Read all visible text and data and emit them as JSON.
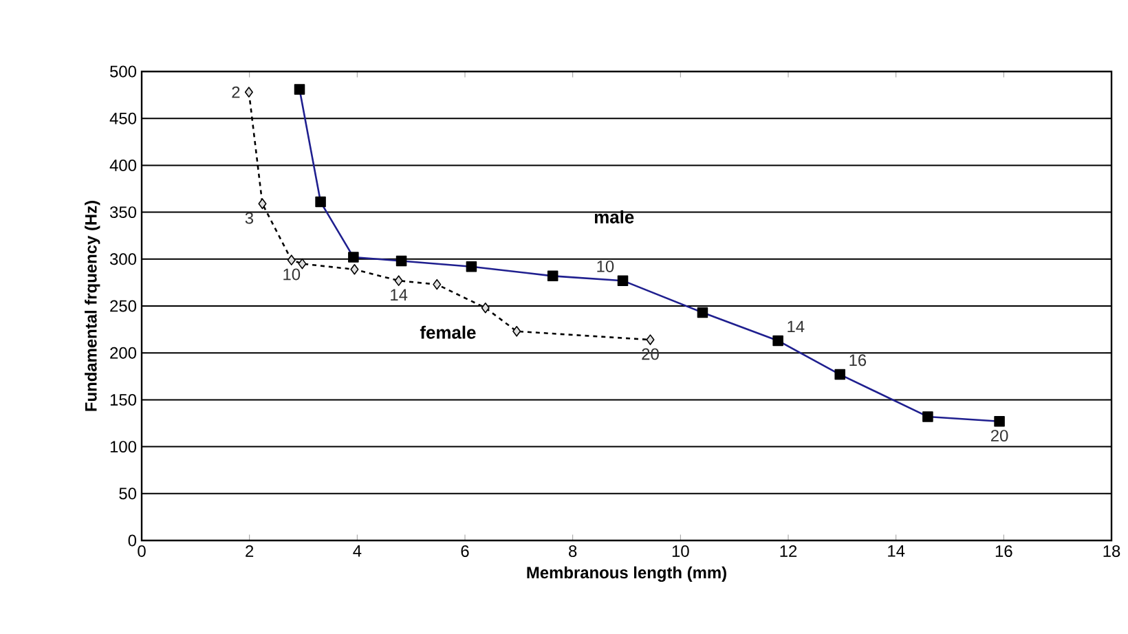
{
  "chart_data": {
    "type": "line",
    "xlabel": "Membranous length (mm)",
    "ylabel": "Fundamental frquency (Hz)",
    "xlim": [
      0,
      18
    ],
    "xticks": [
      0,
      2,
      4,
      6,
      8,
      10,
      12,
      14,
      16,
      18
    ],
    "ylim": [
      0,
      500
    ],
    "yticks": [
      0,
      50,
      100,
      150,
      200,
      250,
      300,
      350,
      400,
      450,
      500
    ],
    "grid": "y",
    "series": [
      {
        "name": "female",
        "color": "#000000",
        "marker": "diamond",
        "line_style": "dashed",
        "x": [
          1.99,
          2.24,
          2.78,
          2.98,
          3.95,
          4.77,
          5.48,
          6.38,
          6.96,
          9.44
        ],
        "values": [
          478,
          359,
          299,
          295,
          289,
          277,
          273,
          248,
          223,
          214
        ]
      },
      {
        "name": "male",
        "color": "#1f1f8f",
        "marker": "square",
        "line_style": "solid",
        "x": [
          2.93,
          3.32,
          3.93,
          4.82,
          6.12,
          7.63,
          8.93,
          10.41,
          11.81,
          12.96,
          14.59,
          15.92
        ],
        "values": [
          481,
          361,
          302,
          298,
          292,
          282,
          277,
          243,
          213,
          177,
          132,
          127
        ]
      }
    ],
    "annotations": [
      {
        "text": "2",
        "x": 1.99,
        "y": 478
      },
      {
        "text": "3",
        "x": 2.24,
        "y": 359
      },
      {
        "text": "10",
        "x": 2.78,
        "y": 299
      },
      {
        "text": "14",
        "x": 4.77,
        "y": 277
      },
      {
        "text": "20",
        "x": 9.44,
        "y": 214
      },
      {
        "text": "10",
        "x": 8.93,
        "y": 277
      },
      {
        "text": "14",
        "x": 11.81,
        "y": 213
      },
      {
        "text": "16",
        "x": 12.96,
        "y": 177
      },
      {
        "text": "20",
        "x": 15.92,
        "y": 127
      }
    ]
  }
}
